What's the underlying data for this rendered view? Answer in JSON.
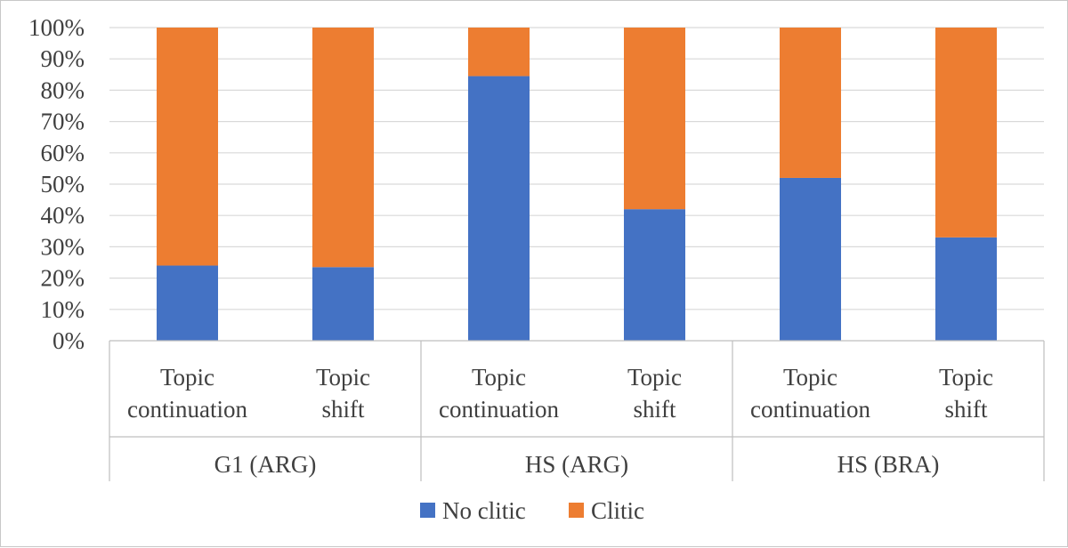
{
  "chart_data": {
    "type": "bar",
    "stacked": true,
    "percent_stacked": true,
    "categories": [
      {
        "label": [
          "Topic",
          "continuation"
        ],
        "group": "G1 (ARG)"
      },
      {
        "label": [
          "Topic",
          "shift"
        ],
        "group": "G1 (ARG)"
      },
      {
        "label": [
          "Topic",
          "continuation"
        ],
        "group": "HS (ARG)"
      },
      {
        "label": [
          "Topic",
          "shift"
        ],
        "group": "HS (ARG)"
      },
      {
        "label": [
          "Topic",
          "continuation"
        ],
        "group": "HS (BRA)"
      },
      {
        "label": [
          "Topic",
          "shift"
        ],
        "group": "HS (BRA)"
      }
    ],
    "groups": [
      "G1 (ARG)",
      "HS (ARG)",
      "HS (BRA)"
    ],
    "series": [
      {
        "name": "No clitic",
        "color": "#4472c4",
        "values": [
          24,
          23.5,
          84.5,
          42,
          52,
          33
        ]
      },
      {
        "name": "Clitic",
        "color": "#ed7d31",
        "values": [
          76,
          76.5,
          15.5,
          58,
          48,
          67
        ]
      }
    ],
    "yticks": [
      "0%",
      "10%",
      "20%",
      "30%",
      "40%",
      "50%",
      "60%",
      "70%",
      "80%",
      "90%",
      "100%"
    ],
    "ylim": [
      0,
      100
    ],
    "grid": true,
    "legend_position": "bottom",
    "title": "",
    "xlabel": "",
    "ylabel": ""
  }
}
